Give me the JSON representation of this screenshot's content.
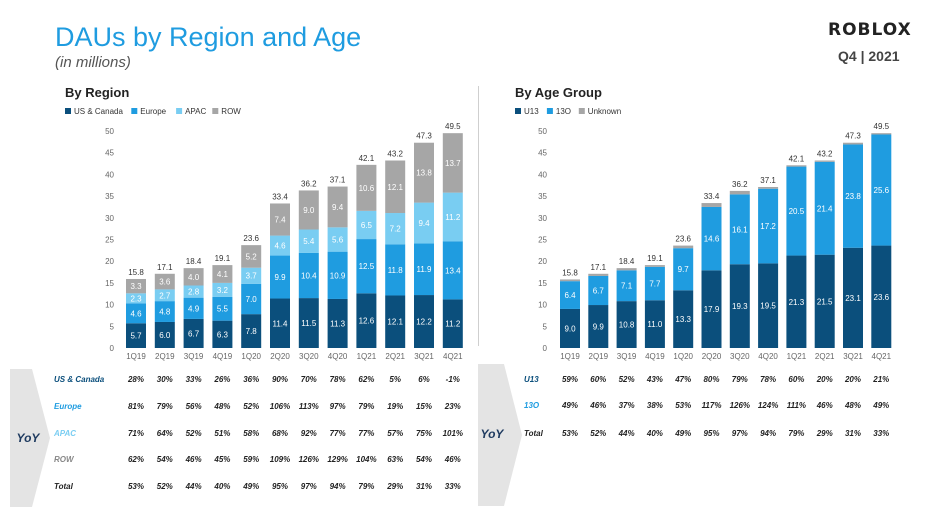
{
  "header": {
    "title": "DAUs by Region and Age",
    "subtitle": "(in millions)",
    "logo": "ROBLOX",
    "quarter": "Q4 | 2021"
  },
  "colors": {
    "us_canada": "#0b4f7c",
    "europe": "#1f9ce0",
    "apac": "#79cdf2",
    "row": "#a6a6a6",
    "u13": "#0b4f7c",
    "o13": "#1f9ce0",
    "unknown": "#a6a6a6"
  },
  "chart_data": [
    {
      "type": "bar",
      "stacked": true,
      "title": "By Region",
      "categories": [
        "1Q19",
        "2Q19",
        "3Q19",
        "4Q19",
        "1Q20",
        "2Q20",
        "3Q20",
        "4Q20",
        "1Q21",
        "2Q21",
        "3Q21",
        "4Q21"
      ],
      "ylim": [
        0,
        50
      ],
      "yticks": [
        0,
        5,
        10,
        15,
        20,
        25,
        30,
        35,
        40,
        45,
        50
      ],
      "legend": "top-left",
      "series": [
        {
          "name": "US & Canada",
          "values": [
            5.7,
            6.0,
            6.7,
            6.3,
            7.8,
            11.4,
            11.5,
            11.3,
            12.6,
            12.1,
            12.2,
            11.2
          ]
        },
        {
          "name": "Europe",
          "values": [
            4.6,
            4.8,
            4.9,
            5.5,
            7.0,
            9.9,
            10.4,
            10.9,
            12.5,
            11.8,
            11.9,
            13.4
          ]
        },
        {
          "name": "APAC",
          "values": [
            2.3,
            2.7,
            2.8,
            3.2,
            3.7,
            4.6,
            5.4,
            5.6,
            6.5,
            7.2,
            9.4,
            11.2
          ]
        },
        {
          "name": "ROW",
          "values": [
            3.3,
            3.6,
            4.0,
            4.1,
            5.2,
            7.4,
            9.0,
            9.4,
            10.6,
            12.1,
            13.8,
            13.7
          ]
        }
      ],
      "totals": [
        "15.8",
        "17.1",
        "18.4",
        "19.1",
        "23.6",
        "33.4",
        "36.2",
        "37.1",
        "42.1",
        "43.2",
        "47.3",
        "49.5"
      ]
    },
    {
      "type": "bar",
      "stacked": true,
      "title": "By Age Group",
      "categories": [
        "1Q19",
        "2Q19",
        "3Q19",
        "4Q19",
        "1Q20",
        "2Q20",
        "3Q20",
        "4Q20",
        "1Q21",
        "2Q21",
        "3Q21",
        "4Q21"
      ],
      "ylim": [
        0,
        50
      ],
      "yticks": [
        0,
        5,
        10,
        15,
        20,
        25,
        30,
        35,
        40,
        45,
        50
      ],
      "legend": "top-left",
      "series": [
        {
          "name": "U13",
          "values": [
            9.0,
            9.9,
            10.8,
            11.0,
            13.3,
            17.9,
            19.3,
            19.5,
            21.3,
            21.5,
            23.1,
            23.6
          ]
        },
        {
          "name": "13O",
          "values": [
            6.4,
            6.7,
            7.1,
            7.7,
            9.7,
            14.6,
            16.1,
            17.2,
            20.5,
            21.4,
            23.8,
            25.6
          ]
        },
        {
          "name": "Unknown",
          "values": [
            0.4,
            0.5,
            0.5,
            0.4,
            0.6,
            0.9,
            0.8,
            0.4,
            0.3,
            0.3,
            0.4,
            0.3
          ]
        }
      ],
      "totals": [
        "15.8",
        "17.1",
        "18.4",
        "19.1",
        "23.6",
        "33.4",
        "36.2",
        "37.1",
        "42.1",
        "43.2",
        "47.3",
        "49.5"
      ]
    }
  ],
  "yoy_region": {
    "label": "YoY",
    "rows": [
      {
        "name": "US & Canada",
        "values": [
          "28%",
          "30%",
          "33%",
          "26%",
          "36%",
          "90%",
          "70%",
          "78%",
          "62%",
          "5%",
          "6%",
          "-1%"
        ]
      },
      {
        "name": "Europe",
        "values": [
          "81%",
          "79%",
          "56%",
          "48%",
          "52%",
          "106%",
          "113%",
          "97%",
          "79%",
          "19%",
          "15%",
          "23%"
        ]
      },
      {
        "name": "APAC",
        "values": [
          "71%",
          "64%",
          "52%",
          "51%",
          "58%",
          "68%",
          "92%",
          "77%",
          "77%",
          "57%",
          "75%",
          "101%"
        ]
      },
      {
        "name": "ROW",
        "values": [
          "62%",
          "54%",
          "46%",
          "45%",
          "59%",
          "109%",
          "126%",
          "129%",
          "104%",
          "63%",
          "54%",
          "46%"
        ]
      },
      {
        "name": "Total",
        "values": [
          "53%",
          "52%",
          "44%",
          "40%",
          "49%",
          "95%",
          "97%",
          "94%",
          "79%",
          "29%",
          "31%",
          "33%"
        ]
      }
    ]
  },
  "yoy_age": {
    "label": "YoY",
    "rows": [
      {
        "name": "U13",
        "values": [
          "59%",
          "60%",
          "52%",
          "43%",
          "47%",
          "80%",
          "79%",
          "78%",
          "60%",
          "20%",
          "20%",
          "21%"
        ]
      },
      {
        "name": "13O",
        "values": [
          "49%",
          "46%",
          "37%",
          "38%",
          "53%",
          "117%",
          "126%",
          "124%",
          "111%",
          "46%",
          "48%",
          "49%"
        ]
      },
      {
        "name": "Total",
        "values": [
          "53%",
          "52%",
          "44%",
          "40%",
          "49%",
          "95%",
          "97%",
          "94%",
          "79%",
          "29%",
          "31%",
          "33%"
        ]
      }
    ]
  }
}
